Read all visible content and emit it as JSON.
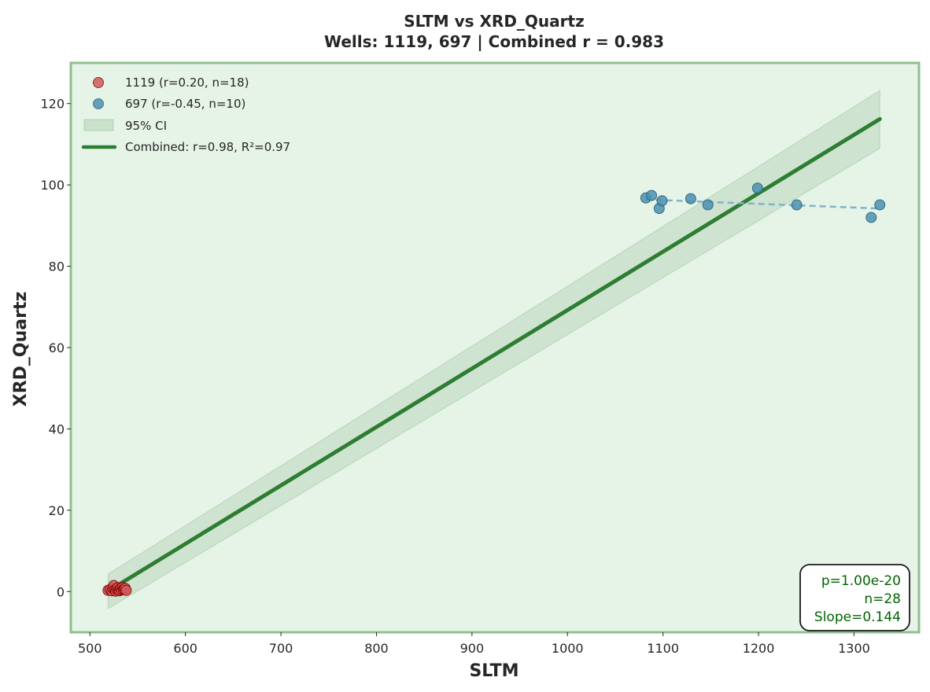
{
  "chart_data": {
    "type": "scatter",
    "title": "SLTM vs XRD_Quartz",
    "subtitle": "Wells: 1119, 697 | Combined r = 0.983",
    "xlabel": "SLTM",
    "ylabel": "XRD_Quartz",
    "xlim": [
      480,
      1368
    ],
    "ylim": [
      -10,
      130
    ],
    "xticks": [
      500,
      600,
      700,
      800,
      900,
      1000,
      1100,
      1200,
      1300
    ],
    "yticks": [
      0,
      20,
      40,
      60,
      80,
      100,
      120
    ],
    "grid": false,
    "legend_position": "top-left",
    "series": [
      {
        "name": "1119 (r=0.20, n=18)",
        "color": "#cd5c5c",
        "edge_color": "#8b0000",
        "points": [
          [
            519,
            0.3
          ],
          [
            521,
            0.5
          ],
          [
            523,
            0.2
          ],
          [
            524,
            0.8
          ],
          [
            525,
            1.5
          ],
          [
            526,
            0.4
          ],
          [
            527,
            0.1
          ],
          [
            528,
            0.6
          ],
          [
            529,
            0.9
          ],
          [
            530,
            0.3
          ],
          [
            531,
            0.2
          ],
          [
            532,
            0.7
          ],
          [
            533,
            0.4
          ],
          [
            534,
            1.0
          ],
          [
            535,
            0.5
          ],
          [
            536,
            0.6
          ],
          [
            537,
            0.8
          ],
          [
            538,
            0.3
          ]
        ]
      },
      {
        "name": "697 (r=-0.45, n=10)",
        "color": "#4a90b0",
        "edge_color": "#2e5f78",
        "points": [
          [
            1082,
            96.8
          ],
          [
            1088,
            97.4
          ],
          [
            1096,
            94.2
          ],
          [
            1099,
            96.1
          ],
          [
            1129,
            96.6
          ],
          [
            1147,
            95.1
          ],
          [
            1199,
            99.2
          ],
          [
            1240,
            95.1
          ],
          [
            1318,
            92.0
          ],
          [
            1327,
            95.1
          ]
        ],
        "trend": {
          "x": [
            1082,
            1327
          ],
          "y": [
            96.4,
            94.2
          ],
          "color": "#7fb3cc"
        }
      }
    ],
    "ci_band": {
      "name": "95% CI",
      "color": "#2e7d32",
      "x": [
        519,
        1327
      ],
      "lower": [
        -4.2,
        109.0
      ],
      "upper": [
        4.3,
        123.2
      ]
    },
    "fit_line": {
      "name": "Combined: r=0.98, R²=0.97",
      "color": "#2e7d32",
      "x": [
        519,
        1327
      ],
      "y": [
        0.1,
        116.2
      ]
    },
    "stats_box": {
      "lines": [
        "p=1.00e-20",
        "n=28",
        "Slope=0.144"
      ]
    },
    "colors": {
      "plot_background": "#e6f4e8",
      "plot_border": "#8fbf8f"
    }
  }
}
